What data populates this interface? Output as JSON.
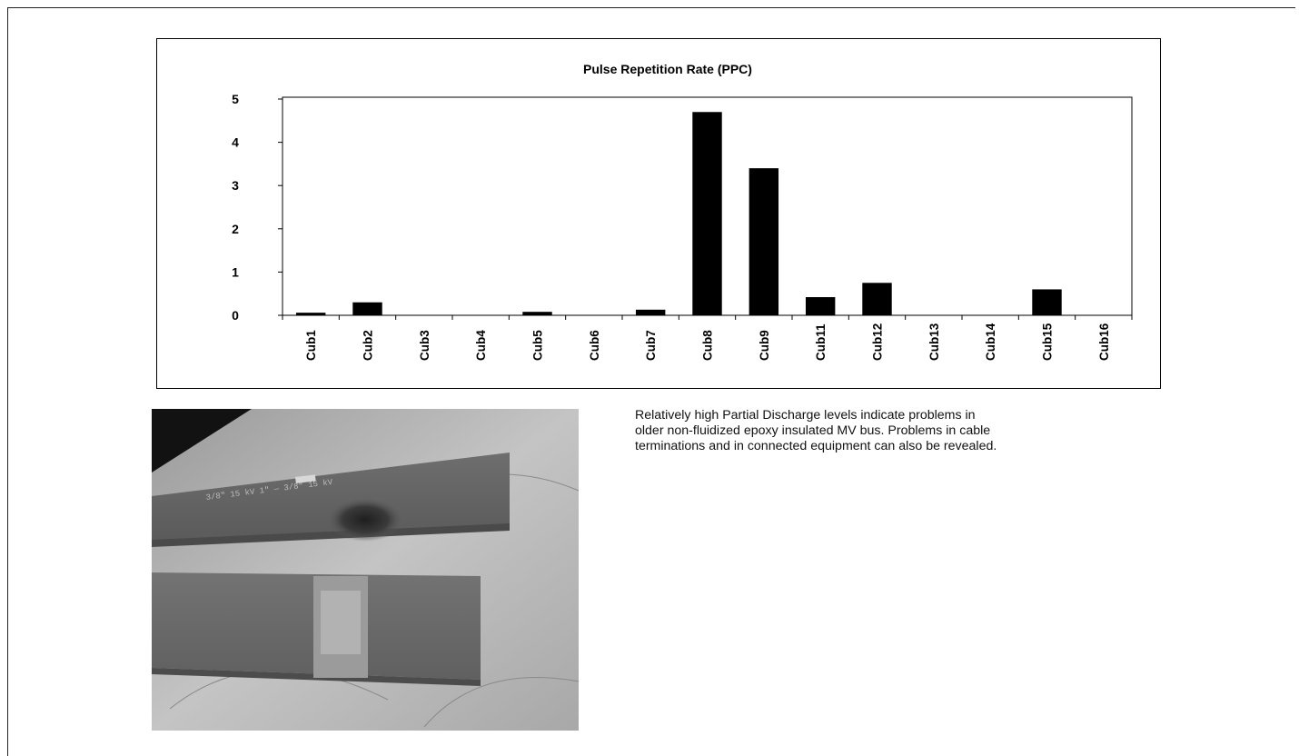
{
  "chart_data": {
    "type": "bar",
    "title": "Pulse Repetition Rate (PPC)",
    "xlabel": "",
    "ylabel": "",
    "categories": [
      "Cub1",
      "Cub2",
      "Cub3",
      "Cub4",
      "Cub5",
      "Cub6",
      "Cub7",
      "Cub8",
      "Cub9",
      "Cub11",
      "Cub12",
      "Cub13",
      "Cub14",
      "Cub15",
      "Cub16"
    ],
    "values": [
      0.06,
      0.3,
      0,
      0,
      0.08,
      0,
      0.13,
      4.7,
      3.4,
      0.42,
      0.75,
      0,
      0,
      0.6,
      0
    ],
    "ylim": [
      0,
      5
    ],
    "yticks": [
      "0",
      "1",
      "2",
      "3",
      "4",
      "5"
    ],
    "grid": false,
    "legend": "none",
    "bar_color": "#000000"
  },
  "caption": {
    "lines": [
      "Relatively high Partial Discharge levels indicate problems in",
      "older non-fluidized epoxy insulated MV bus. Problems in cable",
      "terminations and in connected equipment can also be revealed."
    ]
  },
  "photo": {
    "subject": "damaged MV bus bar photograph",
    "markings": "3/8\"   15 kV   1\" — 3/8\"   15 kV"
  }
}
